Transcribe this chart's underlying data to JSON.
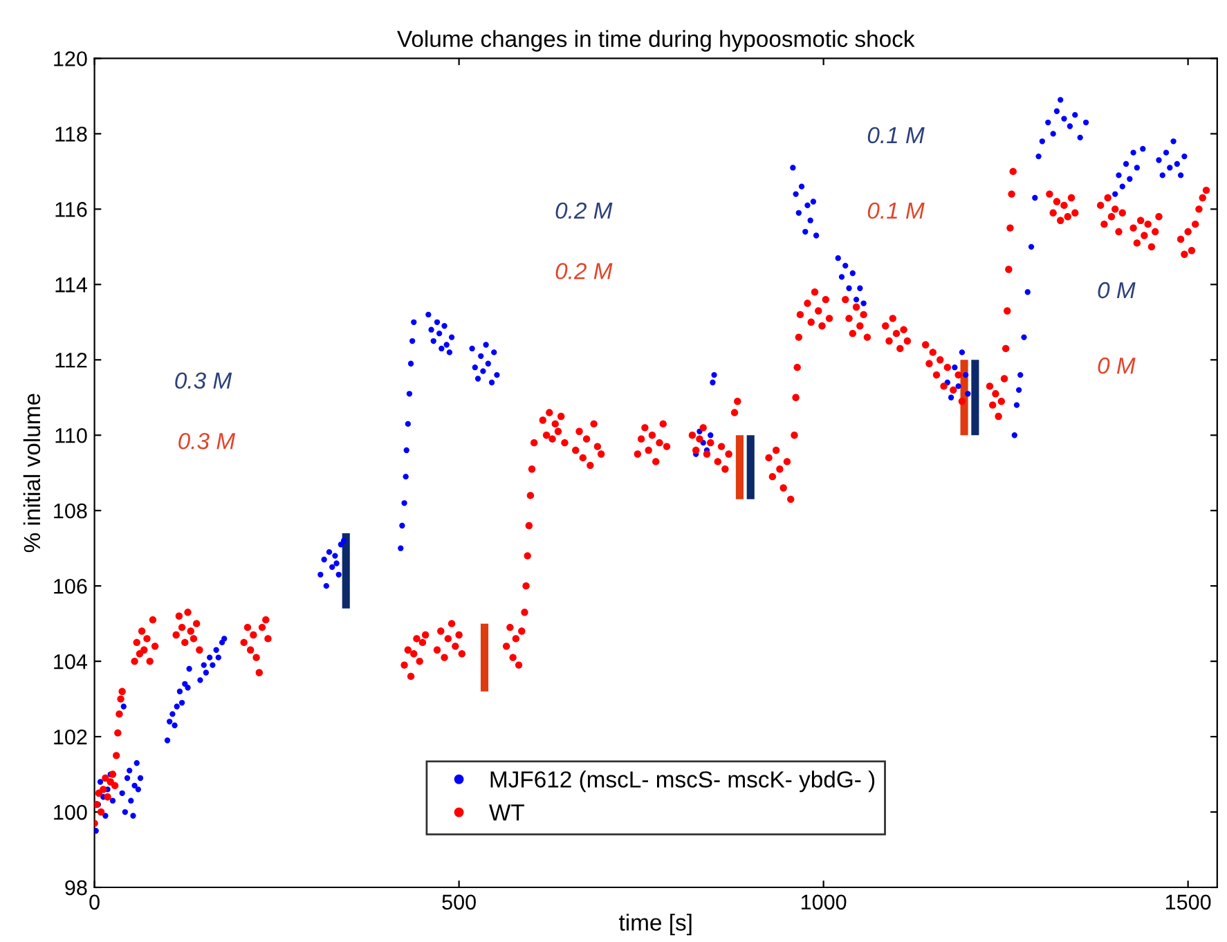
{
  "chart_data": {
    "type": "scatter",
    "title": "Volume changes in time during hypoosmotic shock",
    "xlabel": "time [s]",
    "ylabel": "% initial volume",
    "xlim": [
      0,
      1540
    ],
    "xticks": [
      0,
      500,
      1000,
      1500
    ],
    "ylim": [
      98,
      120
    ],
    "yticks": [
      98,
      100,
      102,
      104,
      106,
      108,
      110,
      112,
      114,
      116,
      118,
      120
    ],
    "grid": false,
    "legend": "bottom",
    "annotations": [
      "0.3 M",
      "0.3 M",
      "0.2 M",
      "0.2 M",
      "0.1 M",
      "0.1 M",
      "0 M",
      "0 M"
    ],
    "series": [
      {
        "name": "MJF612 (mscL- mscS- mscK- ybdG- )",
        "color": "#0000ff",
        "marker": "circle",
        "x": [
          2,
          5,
          8,
          12,
          15,
          18,
          22,
          25,
          38,
          42,
          45,
          48,
          50,
          53,
          55,
          58,
          60,
          63,
          40,
          100,
          103,
          107,
          110,
          113,
          117,
          120,
          124,
          128,
          130,
          145,
          150,
          153,
          158,
          162,
          167,
          170,
          175,
          178,
          310,
          315,
          318,
          322,
          326,
          330,
          335,
          338,
          342,
          332,
          420,
          422,
          425,
          427,
          428,
          430,
          432,
          434,
          436,
          438,
          458,
          462,
          465,
          470,
          473,
          476,
          480,
          483,
          487,
          490,
          518,
          522,
          526,
          530,
          533,
          537,
          540,
          545,
          548,
          552,
          825,
          830,
          835,
          840,
          845,
          848,
          850,
          958,
          962,
          966,
          970,
          975,
          978,
          982,
          986,
          990,
          1020,
          1025,
          1030,
          1035,
          1040,
          1045,
          1050,
          1055,
          1170,
          1175,
          1180,
          1185,
          1190,
          1195,
          1198,
          1262,
          1265,
          1268,
          1270,
          1275,
          1280,
          1285,
          1290,
          1295,
          1300,
          1308,
          1315,
          1320,
          1325,
          1330,
          1338,
          1345,
          1352,
          1360,
          1400,
          1405,
          1410,
          1415,
          1420,
          1425,
          1430,
          1438,
          1460,
          1465,
          1470,
          1475,
          1480,
          1485,
          1490,
          1495
        ],
        "values": [
          99.5,
          100.2,
          100.8,
          100.4,
          99.9,
          100.6,
          101.0,
          100.3,
          100.5,
          100.0,
          100.9,
          101.1,
          100.3,
          99.9,
          100.7,
          101.3,
          100.6,
          100.9,
          102.8,
          101.9,
          102.4,
          102.6,
          102.3,
          102.8,
          103.2,
          102.9,
          103.4,
          103.3,
          103.8,
          103.5,
          103.9,
          103.7,
          104.1,
          103.9,
          104.3,
          104.1,
          104.5,
          104.6,
          106.3,
          106.7,
          106.0,
          106.9,
          106.5,
          106.8,
          106.3,
          107.1,
          107.2,
          106.6,
          107.0,
          107.6,
          108.2,
          108.9,
          109.6,
          110.3,
          111.1,
          111.9,
          112.5,
          113.0,
          113.2,
          112.8,
          112.5,
          113.0,
          112.7,
          112.3,
          112.9,
          112.4,
          112.2,
          112.6,
          112.3,
          111.8,
          111.5,
          112.1,
          111.7,
          112.4,
          111.9,
          111.4,
          112.2,
          111.6,
          109.5,
          110.1,
          109.8,
          109.6,
          110.0,
          111.4,
          111.6,
          117.1,
          116.4,
          115.9,
          116.6,
          115.4,
          116.1,
          115.7,
          116.2,
          115.3,
          114.7,
          114.2,
          114.5,
          113.9,
          114.3,
          113.6,
          113.9,
          113.5,
          111.4,
          111.0,
          111.8,
          111.3,
          112.2,
          111.6,
          111.1,
          110.0,
          110.8,
          111.2,
          111.6,
          112.6,
          113.8,
          115.0,
          116.3,
          117.4,
          117.8,
          118.3,
          118.0,
          118.6,
          118.9,
          118.4,
          118.2,
          118.5,
          117.9,
          118.3,
          116.4,
          116.9,
          116.6,
          117.2,
          116.8,
          117.5,
          117.1,
          117.6,
          117.3,
          116.9,
          117.5,
          117.1,
          117.8,
          117.2,
          116.9,
          117.4
        ]
      },
      {
        "name": "WT",
        "color": "#ff0000",
        "marker": "circle",
        "x": [
          0,
          3,
          6,
          9,
          12,
          15,
          18,
          22,
          25,
          28,
          30,
          32,
          34,
          36,
          38,
          55,
          58,
          62,
          65,
          68,
          72,
          76,
          80,
          83,
          112,
          116,
          120,
          124,
          128,
          132,
          136,
          140,
          144,
          205,
          210,
          214,
          218,
          222,
          226,
          230,
          235,
          238,
          425,
          430,
          434,
          438,
          442,
          446,
          450,
          454,
          470,
          475,
          480,
          485,
          490,
          495,
          500,
          504,
          565,
          570,
          574,
          578,
          582,
          586,
          590,
          592,
          594,
          596,
          598,
          600,
          603,
          615,
          620,
          624,
          628,
          632,
          636,
          640,
          645,
          660,
          665,
          670,
          675,
          680,
          685,
          690,
          695,
          745,
          750,
          755,
          760,
          765,
          770,
          775,
          780,
          785,
          820,
          825,
          830,
          835,
          840,
          845,
          855,
          860,
          865,
          870,
          878,
          882,
          925,
          930,
          935,
          940,
          945,
          950,
          955,
          960,
          962,
          964,
          966,
          968,
          978,
          983,
          988,
          993,
          998,
          1003,
          1008,
          1030,
          1035,
          1040,
          1045,
          1050,
          1055,
          1060,
          1085,
          1090,
          1095,
          1100,
          1105,
          1110,
          1115,
          1140,
          1145,
          1150,
          1155,
          1160,
          1165,
          1170,
          1178,
          1185,
          1190,
          1228,
          1232,
          1236,
          1240,
          1244,
          1248,
          1250,
          1252,
          1254,
          1256,
          1258,
          1260,
          1310,
          1315,
          1320,
          1325,
          1330,
          1335,
          1340,
          1345,
          1380,
          1385,
          1390,
          1395,
          1400,
          1405,
          1410,
          1425,
          1430,
          1435,
          1440,
          1445,
          1450,
          1455,
          1460,
          1490,
          1495,
          1500,
          1505,
          1510,
          1515,
          1520,
          1525
        ],
        "values": [
          99.7,
          100.2,
          100.5,
          100.0,
          100.6,
          100.9,
          100.4,
          100.8,
          101.0,
          100.7,
          101.5,
          102.1,
          102.6,
          103.0,
          103.2,
          104.0,
          104.5,
          104.2,
          104.8,
          104.3,
          104.6,
          104.0,
          105.1,
          104.4,
          104.7,
          105.2,
          104.9,
          104.5,
          105.3,
          104.8,
          104.6,
          105.0,
          104.3,
          104.5,
          104.9,
          104.3,
          104.7,
          104.1,
          103.7,
          104.9,
          105.1,
          104.6,
          103.9,
          104.3,
          103.6,
          104.2,
          104.6,
          104.0,
          104.5,
          104.7,
          104.3,
          104.8,
          104.1,
          104.6,
          105.0,
          104.4,
          104.7,
          104.2,
          104.4,
          104.9,
          104.1,
          104.6,
          103.9,
          104.8,
          105.3,
          106.0,
          106.8,
          107.6,
          108.4,
          109.1,
          109.8,
          110.4,
          110.0,
          110.6,
          109.9,
          110.3,
          110.1,
          110.5,
          109.8,
          109.6,
          110.1,
          109.4,
          109.9,
          109.2,
          110.3,
          109.7,
          109.5,
          109.5,
          109.9,
          110.2,
          109.6,
          110.0,
          109.3,
          109.8,
          110.3,
          109.7,
          110.0,
          109.6,
          109.9,
          110.2,
          109.5,
          109.8,
          109.3,
          109.7,
          109.1,
          109.5,
          110.6,
          110.9,
          109.4,
          108.9,
          109.6,
          109.1,
          108.6,
          109.3,
          108.3,
          110.0,
          111.0,
          111.8,
          112.6,
          113.2,
          113.5,
          113.0,
          113.8,
          113.3,
          112.9,
          113.6,
          113.1,
          113.6,
          113.1,
          112.7,
          113.4,
          112.9,
          113.2,
          112.6,
          112.9,
          112.5,
          113.1,
          112.7,
          112.3,
          112.8,
          112.5,
          112.4,
          111.9,
          112.2,
          111.6,
          112.0,
          111.3,
          111.8,
          111.2,
          111.6,
          110.9,
          111.3,
          110.8,
          111.1,
          110.5,
          110.9,
          111.5,
          112.3,
          113.3,
          114.4,
          115.5,
          116.4,
          117.0,
          116.4,
          115.9,
          116.2,
          115.7,
          116.1,
          115.8,
          116.3,
          115.9,
          116.1,
          115.6,
          116.3,
          115.8,
          116.0,
          115.4,
          115.9,
          115.5,
          115.1,
          115.7,
          115.3,
          115.6,
          115.0,
          115.4,
          115.8,
          115.2,
          114.8,
          115.4,
          114.9,
          115.6,
          116.0,
          116.3,
          116.5
        ]
      },
      {
        "type": "line",
        "color": "#0c2a6a",
        "x": [
          345,
          345
        ],
        "values": [
          105.4,
          107.4
        ]
      },
      {
        "type": "line",
        "color": "#e03a10",
        "x": [
          535,
          535
        ],
        "values": [
          103.2,
          105.0
        ]
      },
      {
        "type": "line",
        "color": "#e03a10",
        "x": [
          885,
          885
        ],
        "values": [
          108.3,
          110.0
        ]
      },
      {
        "type": "line",
        "color": "#0c2a6a",
        "x": [
          900,
          900
        ],
        "values": [
          108.3,
          110.0
        ]
      },
      {
        "type": "line",
        "color": "#e03a10",
        "x": [
          1193,
          1193
        ],
        "values": [
          110.0,
          112.0
        ]
      },
      {
        "type": "line",
        "color": "#0c2a6a",
        "x": [
          1208,
          1208
        ],
        "values": [
          110.0,
          112.0
        ]
      }
    ]
  }
}
